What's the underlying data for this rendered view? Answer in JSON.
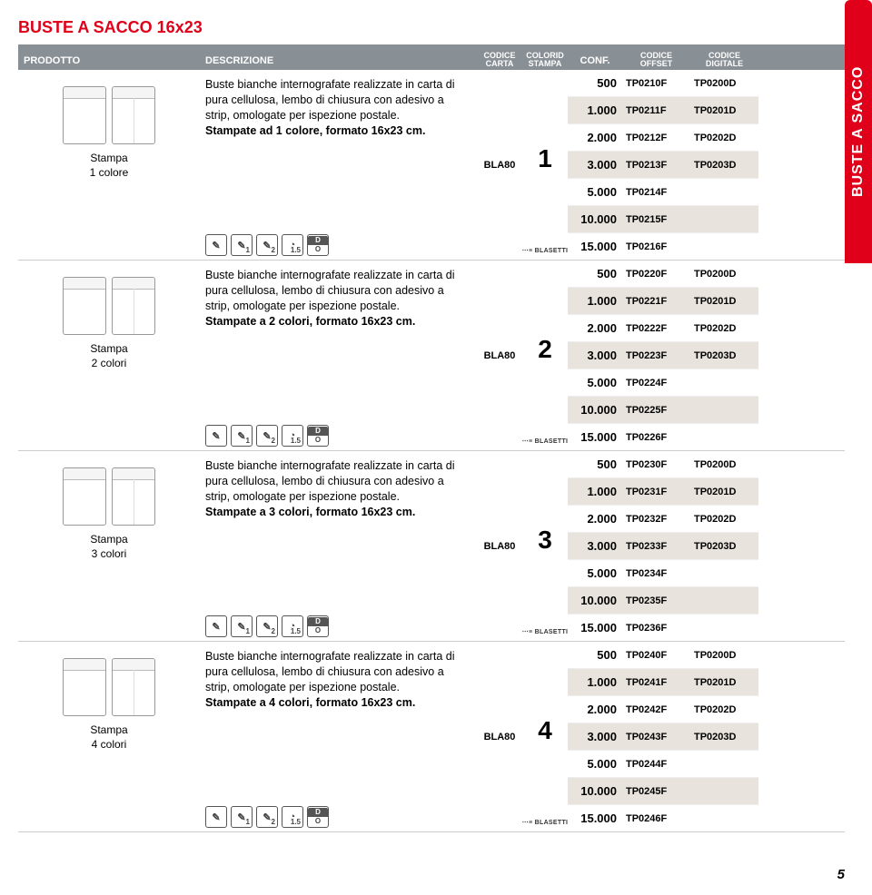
{
  "side_tab": "BUSTE A SACCO",
  "title": "BUSTE A SACCO 16x23",
  "page_number": "5",
  "headers": {
    "prodotto": "PRODOTTO",
    "descrizione": "DESCRIZIONE",
    "carta_l1": "CODICE",
    "carta_l2": "CARTA",
    "stampa_l1": "COLORID",
    "stampa_l2": "STAMPA",
    "conf": "CONF.",
    "offset_l1": "CODICE",
    "offset_l2": "OFFSET",
    "digitale_l1": "CODICE",
    "digitale_l2": "DIGITALE"
  },
  "icons": {
    "pen": "✎",
    "pen1": "✎",
    "pen1_sub": "1",
    "pen2": "✎",
    "pen2_sub": "2",
    "globe": "◔",
    "globe_sub": "1.5",
    "d": "D",
    "o": "O"
  },
  "carta_code": "BLA80",
  "blasetti": "⋯≡ BLASETTI",
  "blocks": [
    {
      "label_l1": "Stampa",
      "label_l2": "1 colore",
      "desc_intro": "Buste bianche internografate realizzate in carta di pura cellulosa, lembo di chiusura con adesivo a strip, omologate per ispezione postale.",
      "desc_bold": "Stampate ad 1 colore, formato 16x23 cm.",
      "stampa_num": "1",
      "rows": [
        {
          "conf": "500",
          "off": "TP0210F",
          "dig": "TP0200D",
          "shade": false
        },
        {
          "conf": "1.000",
          "off": "TP0211F",
          "dig": "TP0201D",
          "shade": true
        },
        {
          "conf": "2.000",
          "off": "TP0212F",
          "dig": "TP0202D",
          "shade": false
        },
        {
          "conf": "3.000",
          "off": "TP0213F",
          "dig": "TP0203D",
          "shade": true
        },
        {
          "conf": "5.000",
          "off": "TP0214F",
          "dig": "",
          "shade": false
        },
        {
          "conf": "10.000",
          "off": "TP0215F",
          "dig": "",
          "shade": true
        },
        {
          "conf": "15.000",
          "off": "TP0216F",
          "dig": "",
          "shade": false
        }
      ]
    },
    {
      "label_l1": "Stampa",
      "label_l2": "2 colori",
      "desc_intro": "Buste bianche internografate realizzate in carta di pura cellulosa, lembo di chiusura con adesivo a strip, omologate per ispezione postale.",
      "desc_bold": "Stampate a 2 colori, formato 16x23 cm.",
      "stampa_num": "2",
      "rows": [
        {
          "conf": "500",
          "off": "TP0220F",
          "dig": "TP0200D",
          "shade": false
        },
        {
          "conf": "1.000",
          "off": "TP0221F",
          "dig": "TP0201D",
          "shade": true
        },
        {
          "conf": "2.000",
          "off": "TP0222F",
          "dig": "TP0202D",
          "shade": false
        },
        {
          "conf": "3.000",
          "off": "TP0223F",
          "dig": "TP0203D",
          "shade": true
        },
        {
          "conf": "5.000",
          "off": "TP0224F",
          "dig": "",
          "shade": false
        },
        {
          "conf": "10.000",
          "off": "TP0225F",
          "dig": "",
          "shade": true
        },
        {
          "conf": "15.000",
          "off": "TP0226F",
          "dig": "",
          "shade": false
        }
      ]
    },
    {
      "label_l1": "Stampa",
      "label_l2": "3 colori",
      "desc_intro": "Buste bianche internografate realizzate in carta di pura cellulosa, lembo di chiusura con adesivo a strip, omologate per ispezione postale.",
      "desc_bold": "Stampate a 3 colori, formato 16x23 cm.",
      "stampa_num": "3",
      "rows": [
        {
          "conf": "500",
          "off": "TP0230F",
          "dig": "TP0200D",
          "shade": false
        },
        {
          "conf": "1.000",
          "off": "TP0231F",
          "dig": "TP0201D",
          "shade": true
        },
        {
          "conf": "2.000",
          "off": "TP0232F",
          "dig": "TP0202D",
          "shade": false
        },
        {
          "conf": "3.000",
          "off": "TP0233F",
          "dig": "TP0203D",
          "shade": true
        },
        {
          "conf": "5.000",
          "off": "TP0234F",
          "dig": "",
          "shade": false
        },
        {
          "conf": "10.000",
          "off": "TP0235F",
          "dig": "",
          "shade": true
        },
        {
          "conf": "15.000",
          "off": "TP0236F",
          "dig": "",
          "shade": false
        }
      ]
    },
    {
      "label_l1": "Stampa",
      "label_l2": "4 colori",
      "desc_intro": "Buste bianche internografate realizzate in carta di pura cellulosa, lembo di chiusura con adesivo a strip, omologate per ispezione postale.",
      "desc_bold": "Stampate a 4 colori, formato 16x23 cm.",
      "stampa_num": "4",
      "rows": [
        {
          "conf": "500",
          "off": "TP0240F",
          "dig": "TP0200D",
          "shade": false
        },
        {
          "conf": "1.000",
          "off": "TP0241F",
          "dig": "TP0201D",
          "shade": true
        },
        {
          "conf": "2.000",
          "off": "TP0242F",
          "dig": "TP0202D",
          "shade": false
        },
        {
          "conf": "3.000",
          "off": "TP0243F",
          "dig": "TP0203D",
          "shade": true
        },
        {
          "conf": "5.000",
          "off": "TP0244F",
          "dig": "",
          "shade": false
        },
        {
          "conf": "10.000",
          "off": "TP0245F",
          "dig": "",
          "shade": true
        },
        {
          "conf": "15.000",
          "off": "TP0246F",
          "dig": "",
          "shade": false
        }
      ]
    }
  ]
}
